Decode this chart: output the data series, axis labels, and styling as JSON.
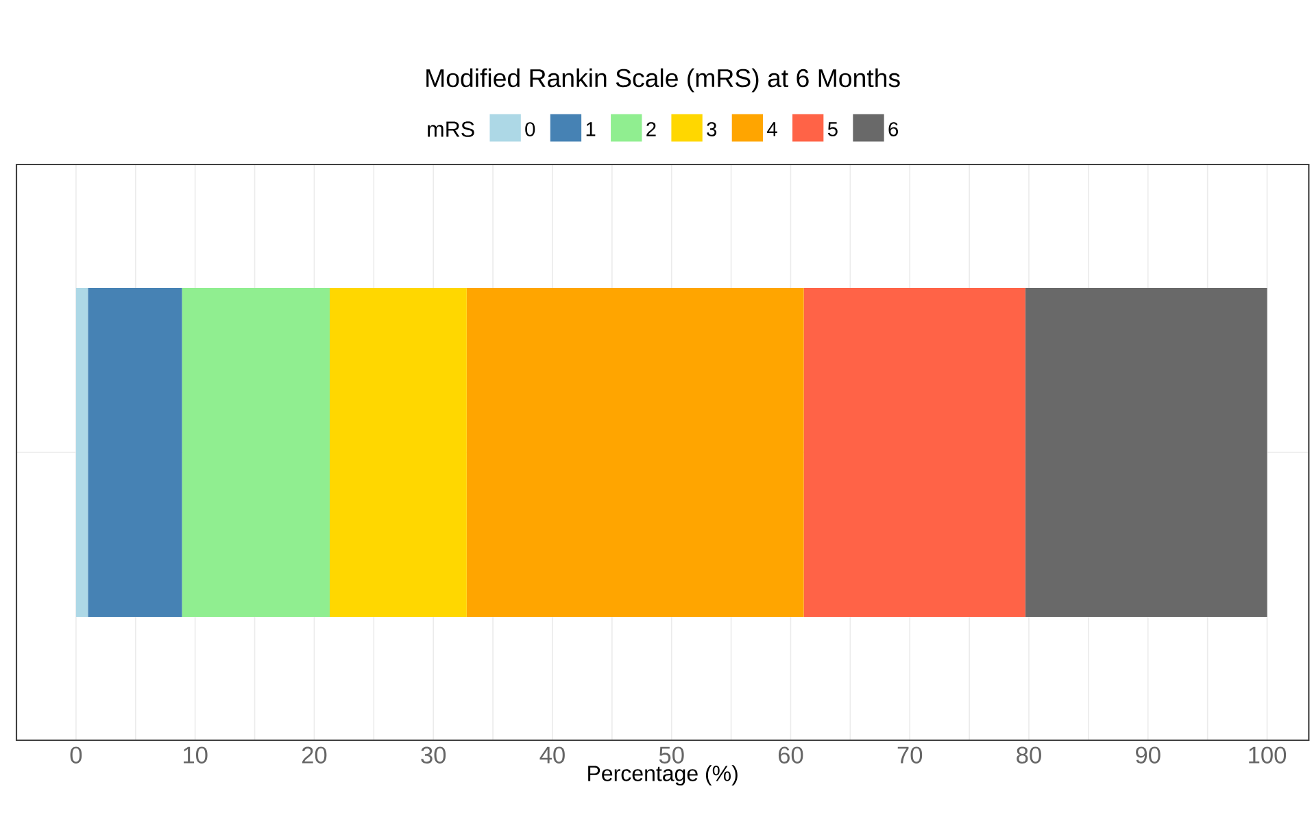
{
  "chart_data": {
    "type": "bar",
    "orientation": "horizontal",
    "stacked": true,
    "title": "Modified Rankin Scale (mRS) at 6 Months",
    "xlabel": "Percentage (%)",
    "legend_title": "mRS",
    "categories": [
      null
    ],
    "series": [
      {
        "name": "0",
        "color": "#add8e6",
        "values": [
          1.0
        ]
      },
      {
        "name": "1",
        "color": "#4682b4",
        "values": [
          7.9
        ]
      },
      {
        "name": "2",
        "color": "#90ee90",
        "values": [
          12.4
        ]
      },
      {
        "name": "3",
        "color": "#ffd700",
        "values": [
          11.5
        ]
      },
      {
        "name": "4",
        "color": "#ffa500",
        "values": [
          28.3
        ]
      },
      {
        "name": "5",
        "color": "#ff6347",
        "values": [
          18.6
        ]
      },
      {
        "name": "6",
        "color": "#696969",
        "values": [
          20.3
        ]
      }
    ],
    "xlim": [
      -5,
      103.5
    ],
    "xticks": [
      0,
      10,
      20,
      30,
      40,
      50,
      60,
      70,
      80,
      90,
      100
    ],
    "grid": true,
    "legend": "top",
    "tick_labels": "x"
  }
}
